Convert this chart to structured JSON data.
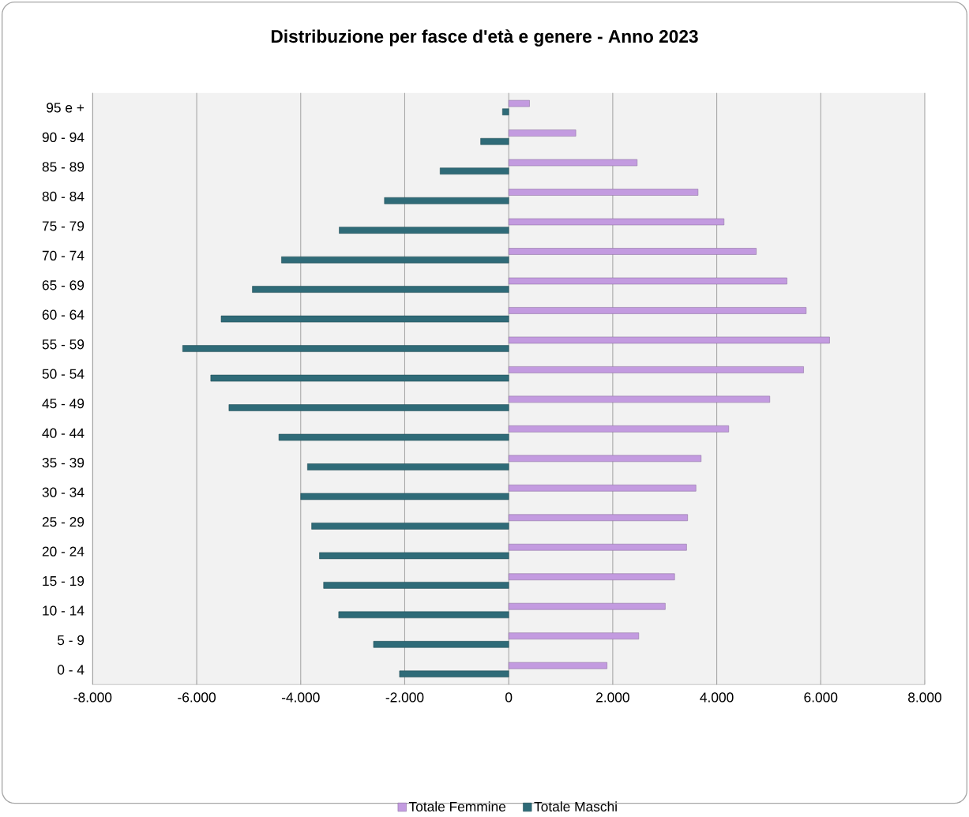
{
  "chart_data": {
    "type": "bar",
    "orientation": "horizontal",
    "title": "Distribuzione per fasce d'età e genere - Anno 2023",
    "categories": [
      "95 e +",
      "90 - 94",
      "85 - 89",
      "80 - 84",
      "75 - 79",
      "70 - 74",
      "65 - 69",
      "60 - 64",
      "55 - 59",
      "50 - 54",
      "45 - 49",
      "40 - 44",
      "35 - 39",
      "30 - 34",
      "25 - 29",
      "20 - 24",
      "15 - 19",
      "10 - 14",
      "5 - 9",
      "0 - 4"
    ],
    "series": [
      {
        "name": "Totale Femmine",
        "color": "#c39be0",
        "values": [
          400,
          1290,
          2470,
          3640,
          4140,
          4760,
          5350,
          5720,
          6170,
          5670,
          5020,
          4230,
          3700,
          3600,
          3440,
          3420,
          3190,
          3010,
          2500,
          1890
        ]
      },
      {
        "name": "Totale Maschi",
        "color": "#2f6b78",
        "values": [
          -120,
          -540,
          -1320,
          -2390,
          -3260,
          -4370,
          -4930,
          -5530,
          -6270,
          -5730,
          -5380,
          -4420,
          -3870,
          -4000,
          -3790,
          -3640,
          -3560,
          -3270,
          -2600,
          -2100
        ]
      }
    ],
    "xlim": [
      -8000,
      8000
    ],
    "xticks": [
      {
        "value": -8000,
        "label": "-8.000"
      },
      {
        "value": -6000,
        "label": "-6.000"
      },
      {
        "value": -4000,
        "label": "-4.000"
      },
      {
        "value": -2000,
        "label": "-2.000"
      },
      0,
      {
        "value": 2000,
        "label": "2.000"
      },
      {
        "value": 4000,
        "label": "4.000"
      },
      {
        "value": 6000,
        "label": "6.000"
      },
      {
        "value": 8000,
        "label": "8.000"
      }
    ],
    "grid": "x",
    "legend": "bottom"
  }
}
